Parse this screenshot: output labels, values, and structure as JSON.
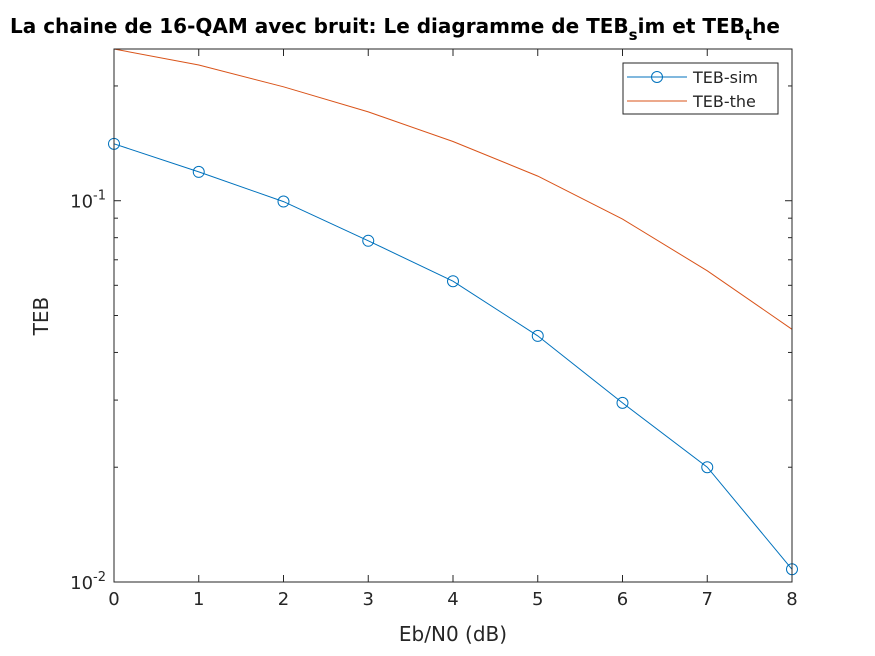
{
  "chart_data": {
    "type": "line",
    "title": {
      "main": "La chaine de 16-QAM avec bruit: Le diagramme de TEB",
      "sub1": "s",
      "mid": "im et TEB",
      "sub2": "t",
      "end": "he"
    },
    "xlabel": "Eb/N0 (dB)",
    "ylabel": "TEB",
    "xlim": [
      0,
      8
    ],
    "ylim": [
      0.01,
      0.25
    ],
    "yscale": "log",
    "grid": false,
    "legend_position": "top-right",
    "x": [
      0,
      1,
      2,
      3,
      4,
      5,
      6,
      7,
      8
    ],
    "xticks": [
      "0",
      "1",
      "2",
      "3",
      "4",
      "5",
      "6",
      "7",
      "8"
    ],
    "yticks": [
      {
        "base": "10",
        "exp": "-2",
        "value": 0.01
      },
      {
        "base": "10",
        "exp": "-1",
        "value": 0.1
      }
    ],
    "series": [
      {
        "name": "TEB-sim",
        "color": "#0072BD",
        "marker": "circle",
        "values": [
          0.141,
          0.119,
          0.0995,
          0.0785,
          0.0615,
          0.0442,
          0.0295,
          0.02,
          0.0108
        ]
      },
      {
        "name": "TEB-the",
        "color": "#D95319",
        "marker": "none",
        "values": [
          0.25,
          0.227,
          0.199,
          0.171,
          0.143,
          0.116,
          0.0895,
          0.0655,
          0.046
        ]
      }
    ]
  }
}
